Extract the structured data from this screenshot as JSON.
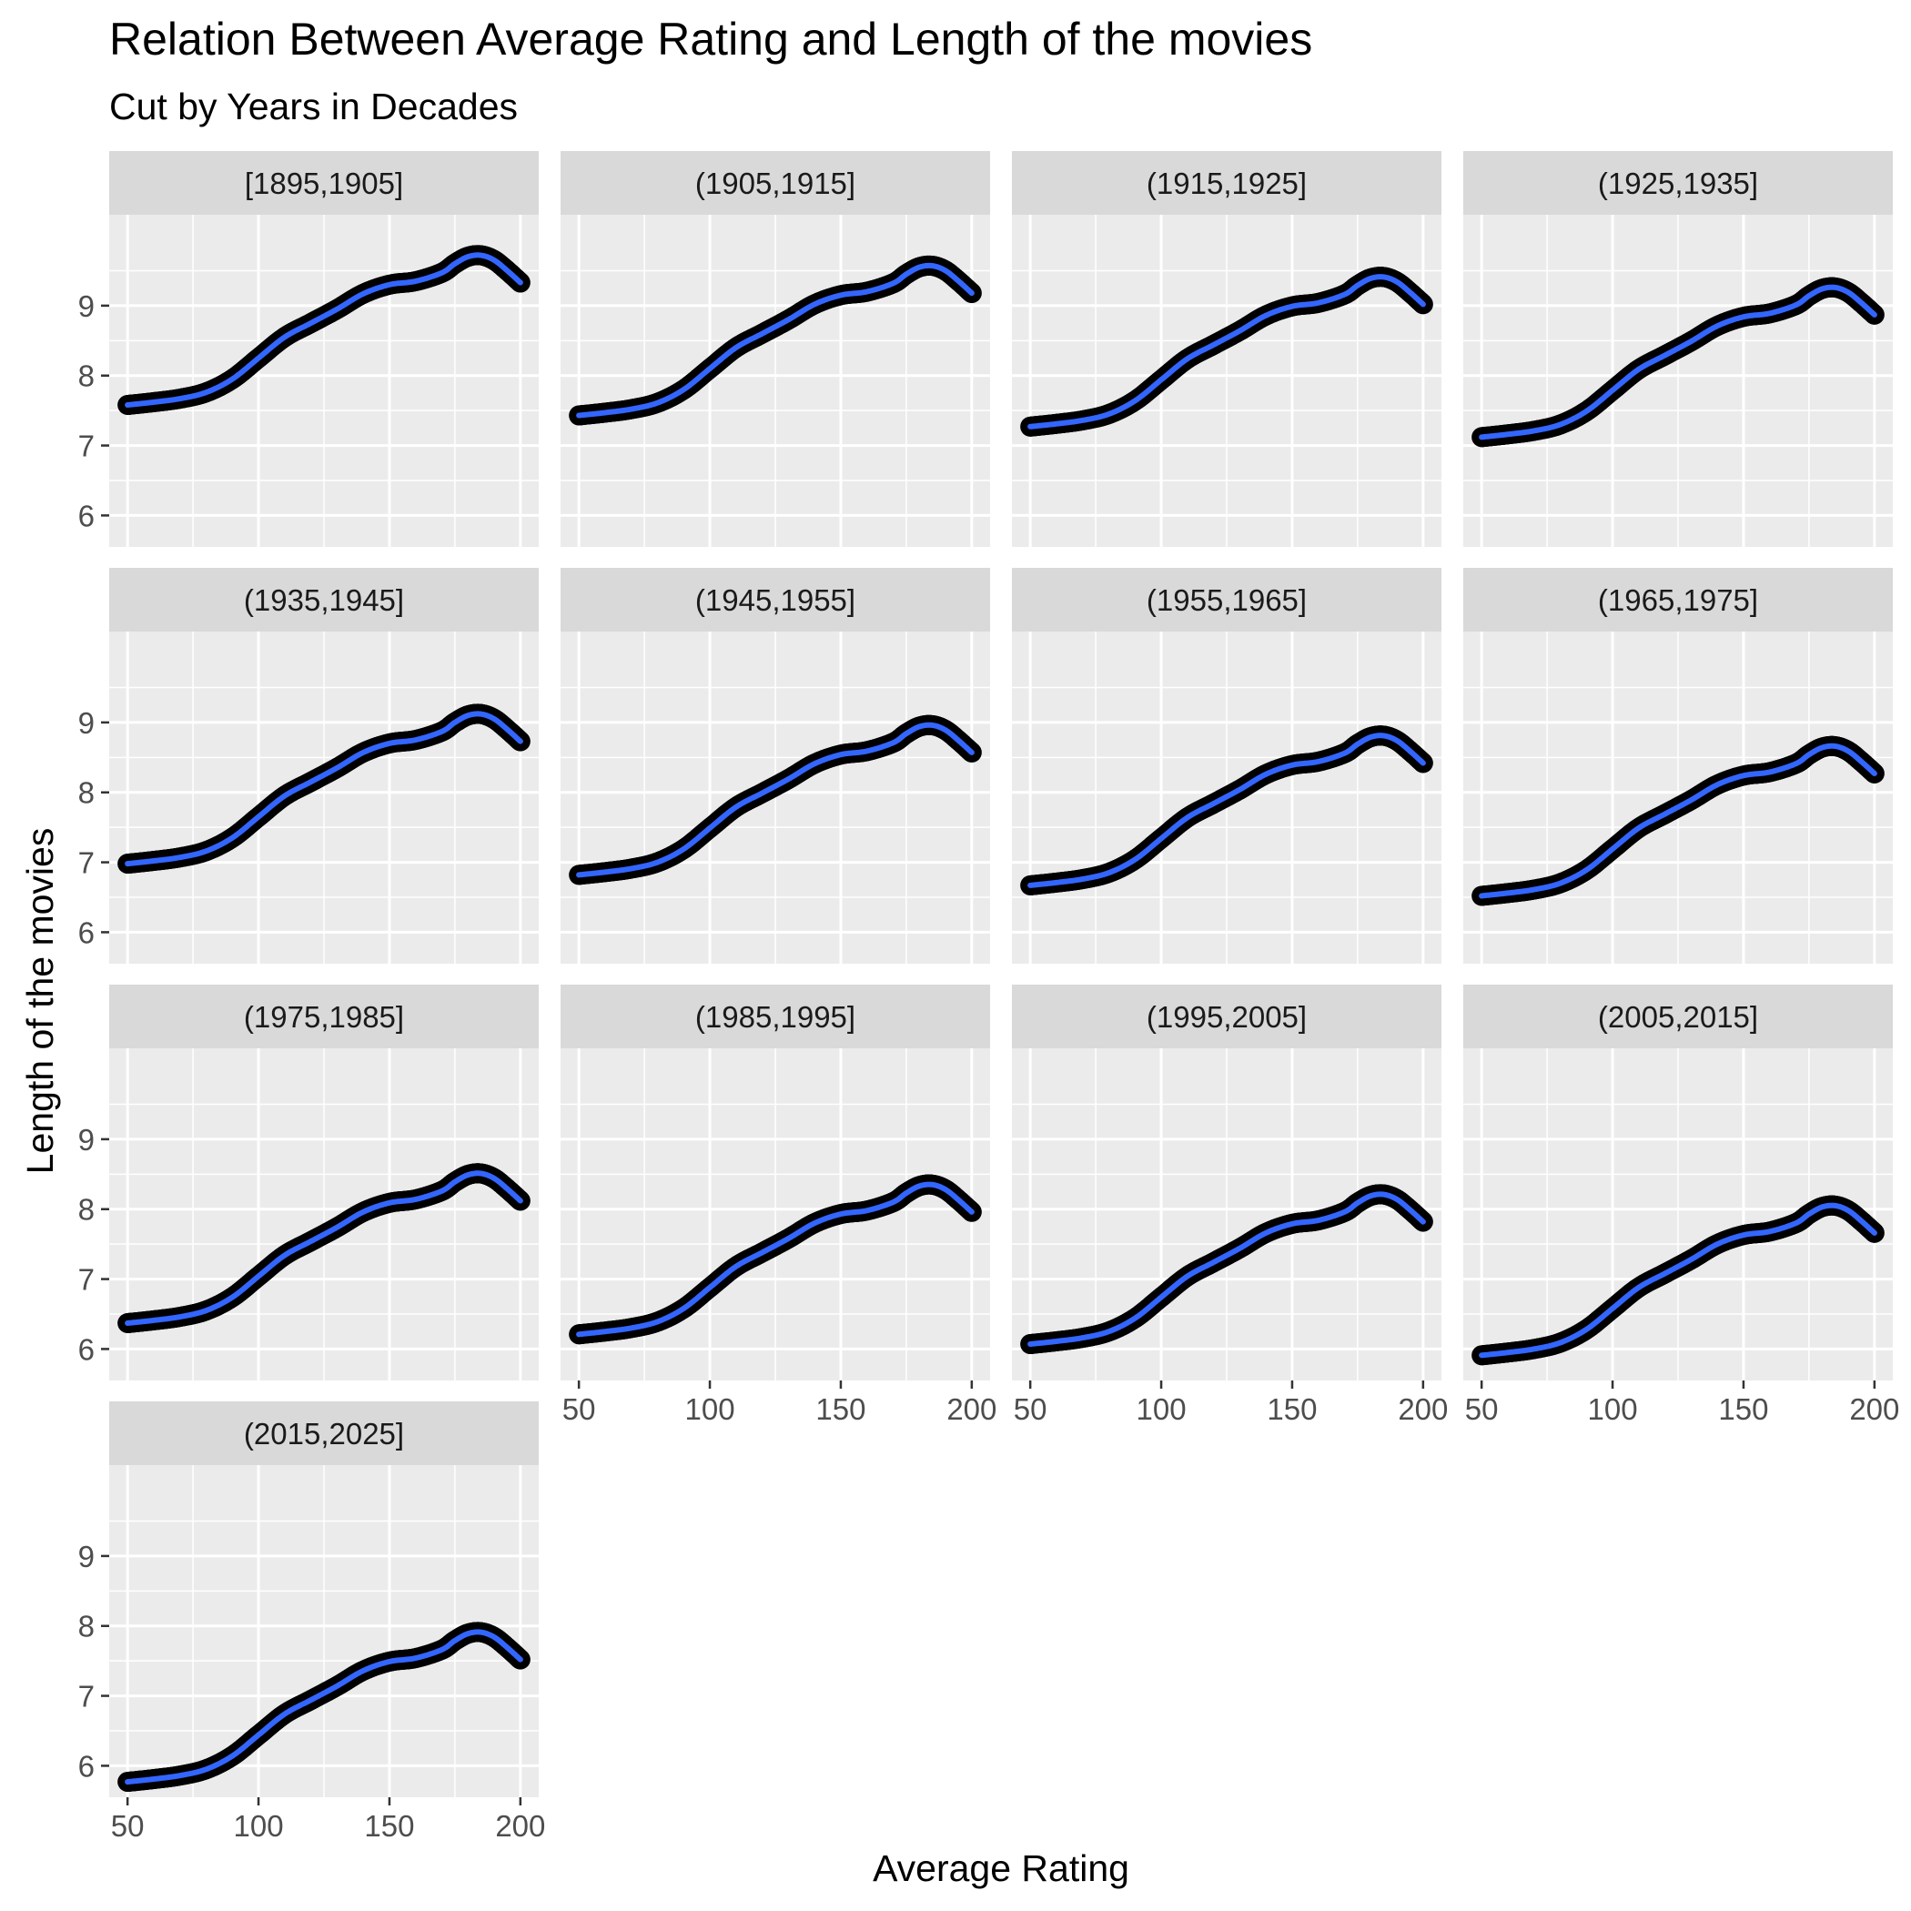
{
  "chart_data": {
    "type": "line",
    "title": "Relation Between Average Rating and Length of the movies",
    "subtitle": "Cut by Years in Decades",
    "xlabel": "Average Rating",
    "ylabel": "Length of the movies",
    "xlim": [
      43,
      207
    ],
    "ylim": [
      5.55,
      10.3
    ],
    "x_ticks": [
      50,
      100,
      150,
      200
    ],
    "y_ticks": [
      6,
      7,
      8,
      9
    ],
    "grid": true,
    "line_color": "#3366FF",
    "point_color": "#000000",
    "panel_background": "#EBEBEB",
    "strip_background": "#D9D9D9",
    "x": [
      50,
      60,
      70,
      80,
      90,
      100,
      110,
      120,
      130,
      140,
      150,
      160,
      170,
      175,
      180,
      185,
      190,
      195,
      200
    ],
    "series": [
      {
        "name": "[1895,1905]",
        "values": [
          7.58,
          7.62,
          7.67,
          7.76,
          7.95,
          8.25,
          8.55,
          8.75,
          8.95,
          9.17,
          9.3,
          9.35,
          9.47,
          9.6,
          9.7,
          9.72,
          9.65,
          9.5,
          9.33
        ]
      },
      {
        "name": "(1905,1915]",
        "values": [
          7.43,
          7.47,
          7.52,
          7.61,
          7.8,
          8.1,
          8.4,
          8.6,
          8.8,
          9.02,
          9.15,
          9.2,
          9.32,
          9.45,
          9.55,
          9.57,
          9.5,
          9.35,
          9.18
        ]
      },
      {
        "name": "(1915,1925]",
        "values": [
          7.27,
          7.31,
          7.36,
          7.45,
          7.64,
          7.94,
          8.24,
          8.44,
          8.64,
          8.86,
          8.99,
          9.04,
          9.16,
          9.29,
          9.39,
          9.41,
          9.34,
          9.19,
          9.02
        ]
      },
      {
        "name": "(1925,1935]",
        "values": [
          7.12,
          7.16,
          7.21,
          7.3,
          7.49,
          7.79,
          8.09,
          8.29,
          8.49,
          8.71,
          8.84,
          8.89,
          9.01,
          9.14,
          9.24,
          9.26,
          9.19,
          9.04,
          8.87
        ]
      },
      {
        "name": "(1935,1945]",
        "values": [
          6.98,
          7.02,
          7.07,
          7.16,
          7.35,
          7.65,
          7.95,
          8.15,
          8.35,
          8.57,
          8.7,
          8.75,
          8.87,
          9.0,
          9.1,
          9.12,
          9.05,
          8.9,
          8.73
        ]
      },
      {
        "name": "(1945,1955]",
        "values": [
          6.82,
          6.86,
          6.91,
          7.0,
          7.19,
          7.49,
          7.79,
          7.99,
          8.19,
          8.41,
          8.54,
          8.59,
          8.71,
          8.84,
          8.94,
          8.96,
          8.89,
          8.74,
          8.57
        ]
      },
      {
        "name": "(1955,1965]",
        "values": [
          6.67,
          6.71,
          6.76,
          6.85,
          7.04,
          7.34,
          7.64,
          7.84,
          8.04,
          8.26,
          8.39,
          8.44,
          8.56,
          8.69,
          8.79,
          8.81,
          8.74,
          8.59,
          8.42
        ]
      },
      {
        "name": "(1965,1975]",
        "values": [
          6.52,
          6.56,
          6.61,
          6.7,
          6.89,
          7.19,
          7.49,
          7.69,
          7.89,
          8.11,
          8.24,
          8.29,
          8.41,
          8.54,
          8.64,
          8.66,
          8.59,
          8.44,
          8.27
        ]
      },
      {
        "name": "(1975,1985]",
        "values": [
          6.37,
          6.41,
          6.46,
          6.55,
          6.74,
          7.04,
          7.34,
          7.54,
          7.74,
          7.96,
          8.09,
          8.14,
          8.26,
          8.39,
          8.49,
          8.51,
          8.44,
          8.29,
          8.12
        ]
      },
      {
        "name": "(1985,1995]",
        "values": [
          6.21,
          6.25,
          6.3,
          6.39,
          6.58,
          6.88,
          7.18,
          7.38,
          7.58,
          7.8,
          7.93,
          7.98,
          8.1,
          8.23,
          8.33,
          8.35,
          8.28,
          8.13,
          7.96
        ]
      },
      {
        "name": "(1995,2005]",
        "values": [
          6.07,
          6.11,
          6.16,
          6.25,
          6.44,
          6.74,
          7.04,
          7.24,
          7.44,
          7.66,
          7.79,
          7.84,
          7.96,
          8.09,
          8.19,
          8.21,
          8.14,
          7.99,
          7.82
        ]
      },
      {
        "name": "(2005,2015]",
        "values": [
          5.91,
          5.95,
          6.0,
          6.09,
          6.28,
          6.58,
          6.88,
          7.08,
          7.28,
          7.5,
          7.63,
          7.68,
          7.8,
          7.93,
          8.03,
          8.05,
          7.98,
          7.83,
          7.66
        ]
      },
      {
        "name": "(2015,2025]",
        "values": [
          5.77,
          5.81,
          5.86,
          5.95,
          6.14,
          6.44,
          6.74,
          6.94,
          7.14,
          7.36,
          7.49,
          7.54,
          7.66,
          7.79,
          7.89,
          7.91,
          7.84,
          7.69,
          7.52
        ]
      }
    ]
  }
}
